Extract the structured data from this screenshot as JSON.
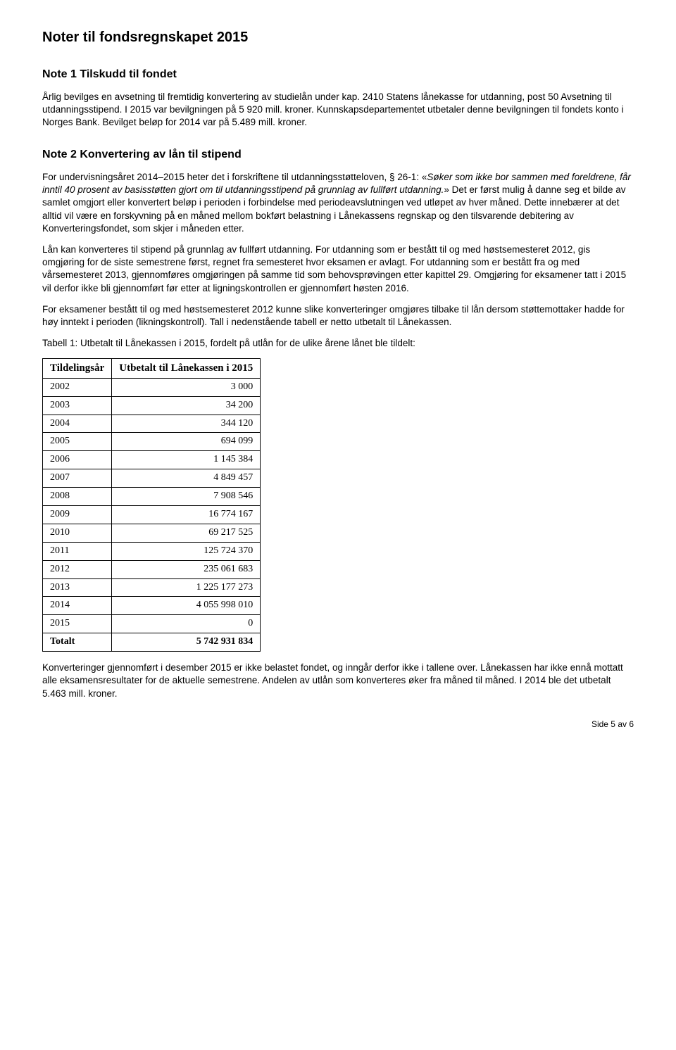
{
  "title": "Noter til fondsregnskapet 2015",
  "note1": {
    "heading": "Note 1 Tilskudd til fondet",
    "p1": "Årlig bevilges en avsetning til fremtidig konvertering av studielån under kap. 2410 Statens lånekasse for utdanning, post 50 Avsetning til utdanningsstipend. I 2015 var bevilgningen på 5 920 mill. kroner. Kunnskapsdepartementet utbetaler denne bevilgningen til fondets konto i Norges Bank. Bevilget beløp for 2014 var på 5.489 mill. kroner."
  },
  "note2": {
    "heading": "Note 2 Konvertering av lån til stipend",
    "p1_pre": "For undervisningsåret 2014–2015 heter det i forskriftene til utdanningsstøtteloven, § 26-1: «",
    "p1_italic": "Søker som ikke bor sammen med foreldrene, får inntil 40 prosent av basisstøtten gjort om til utdanningsstipend på grunnlag av fullført utdanning.",
    "p1_post": "» Det er først mulig å danne seg et bilde av samlet omgjort eller konvertert beløp i perioden i forbindelse med periodeavslutningen ved utløpet av hver måned. Dette innebærer at det alltid vil være en forskyvning på en måned mellom bokført belastning i Lånekassens regnskap og den tilsvarende debitering av Konverteringsfondet, som skjer i måneden etter.",
    "p2": "Lån kan konverteres til stipend på grunnlag av fullført utdanning. For utdanning som er bestått til og med høstsemesteret 2012, gis omgjøring for de siste semestrene først, regnet fra semesteret hvor eksamen er avlagt. For utdanning som er bestått fra og med vårsemesteret 2013, gjennomføres omgjøringen på samme tid som behovsprøvingen etter kapittel 29. Omgjøring for eksamener tatt i 2015 vil derfor ikke bli gjennomført før etter at ligningskontrollen er gjennomført høsten 2016.",
    "p3": "For eksamener bestått til og med høstsemesteret 2012 kunne slike konverteringer omgjøres tilbake til lån dersom støttemottaker hadde for høy inntekt i perioden (likningskontroll). Tall i nedenstående tabell er netto utbetalt til Lånekassen.",
    "table_caption": "Tabell 1: Utbetalt til Lånekassen i 2015, fordelt på utlån for de ulike årene lånet ble tildelt:",
    "col1": "Tildelingsår",
    "col2": "Utbetalt til Lånekassen i 2015",
    "rows": [
      {
        "year": "2002",
        "value": "3 000"
      },
      {
        "year": "2003",
        "value": "34 200"
      },
      {
        "year": "2004",
        "value": "344 120"
      },
      {
        "year": "2005",
        "value": "694 099"
      },
      {
        "year": "2006",
        "value": "1 145 384"
      },
      {
        "year": "2007",
        "value": "4 849 457"
      },
      {
        "year": "2008",
        "value": "7 908 546"
      },
      {
        "year": "2009",
        "value": "16 774 167"
      },
      {
        "year": "2010",
        "value": "69 217 525"
      },
      {
        "year": "2011",
        "value": "125 724 370"
      },
      {
        "year": "2012",
        "value": "235 061 683"
      },
      {
        "year": "2013",
        "value": "1 225 177 273"
      },
      {
        "year": "2014",
        "value": "4 055 998 010"
      },
      {
        "year": "2015",
        "value": "0"
      }
    ],
    "total_label": "Totalt",
    "total_value": "5 742 931 834",
    "p4": "Konverteringer gjennomført i desember 2015 er ikke belastet fondet, og inngår derfor ikke i tallene over. Lånekassen har ikke ennå mottatt alle eksamensresultater for de aktuelle semestrene. Andelen av utlån som konverteres øker fra måned til måned. I 2014 ble det utbetalt 5.463 mill. kroner."
  },
  "footer": "Side 5 av 6",
  "table_style": {
    "col1_width": 130,
    "col2_width": 260,
    "border_color": "#000000",
    "font_family": "Times New Roman"
  }
}
